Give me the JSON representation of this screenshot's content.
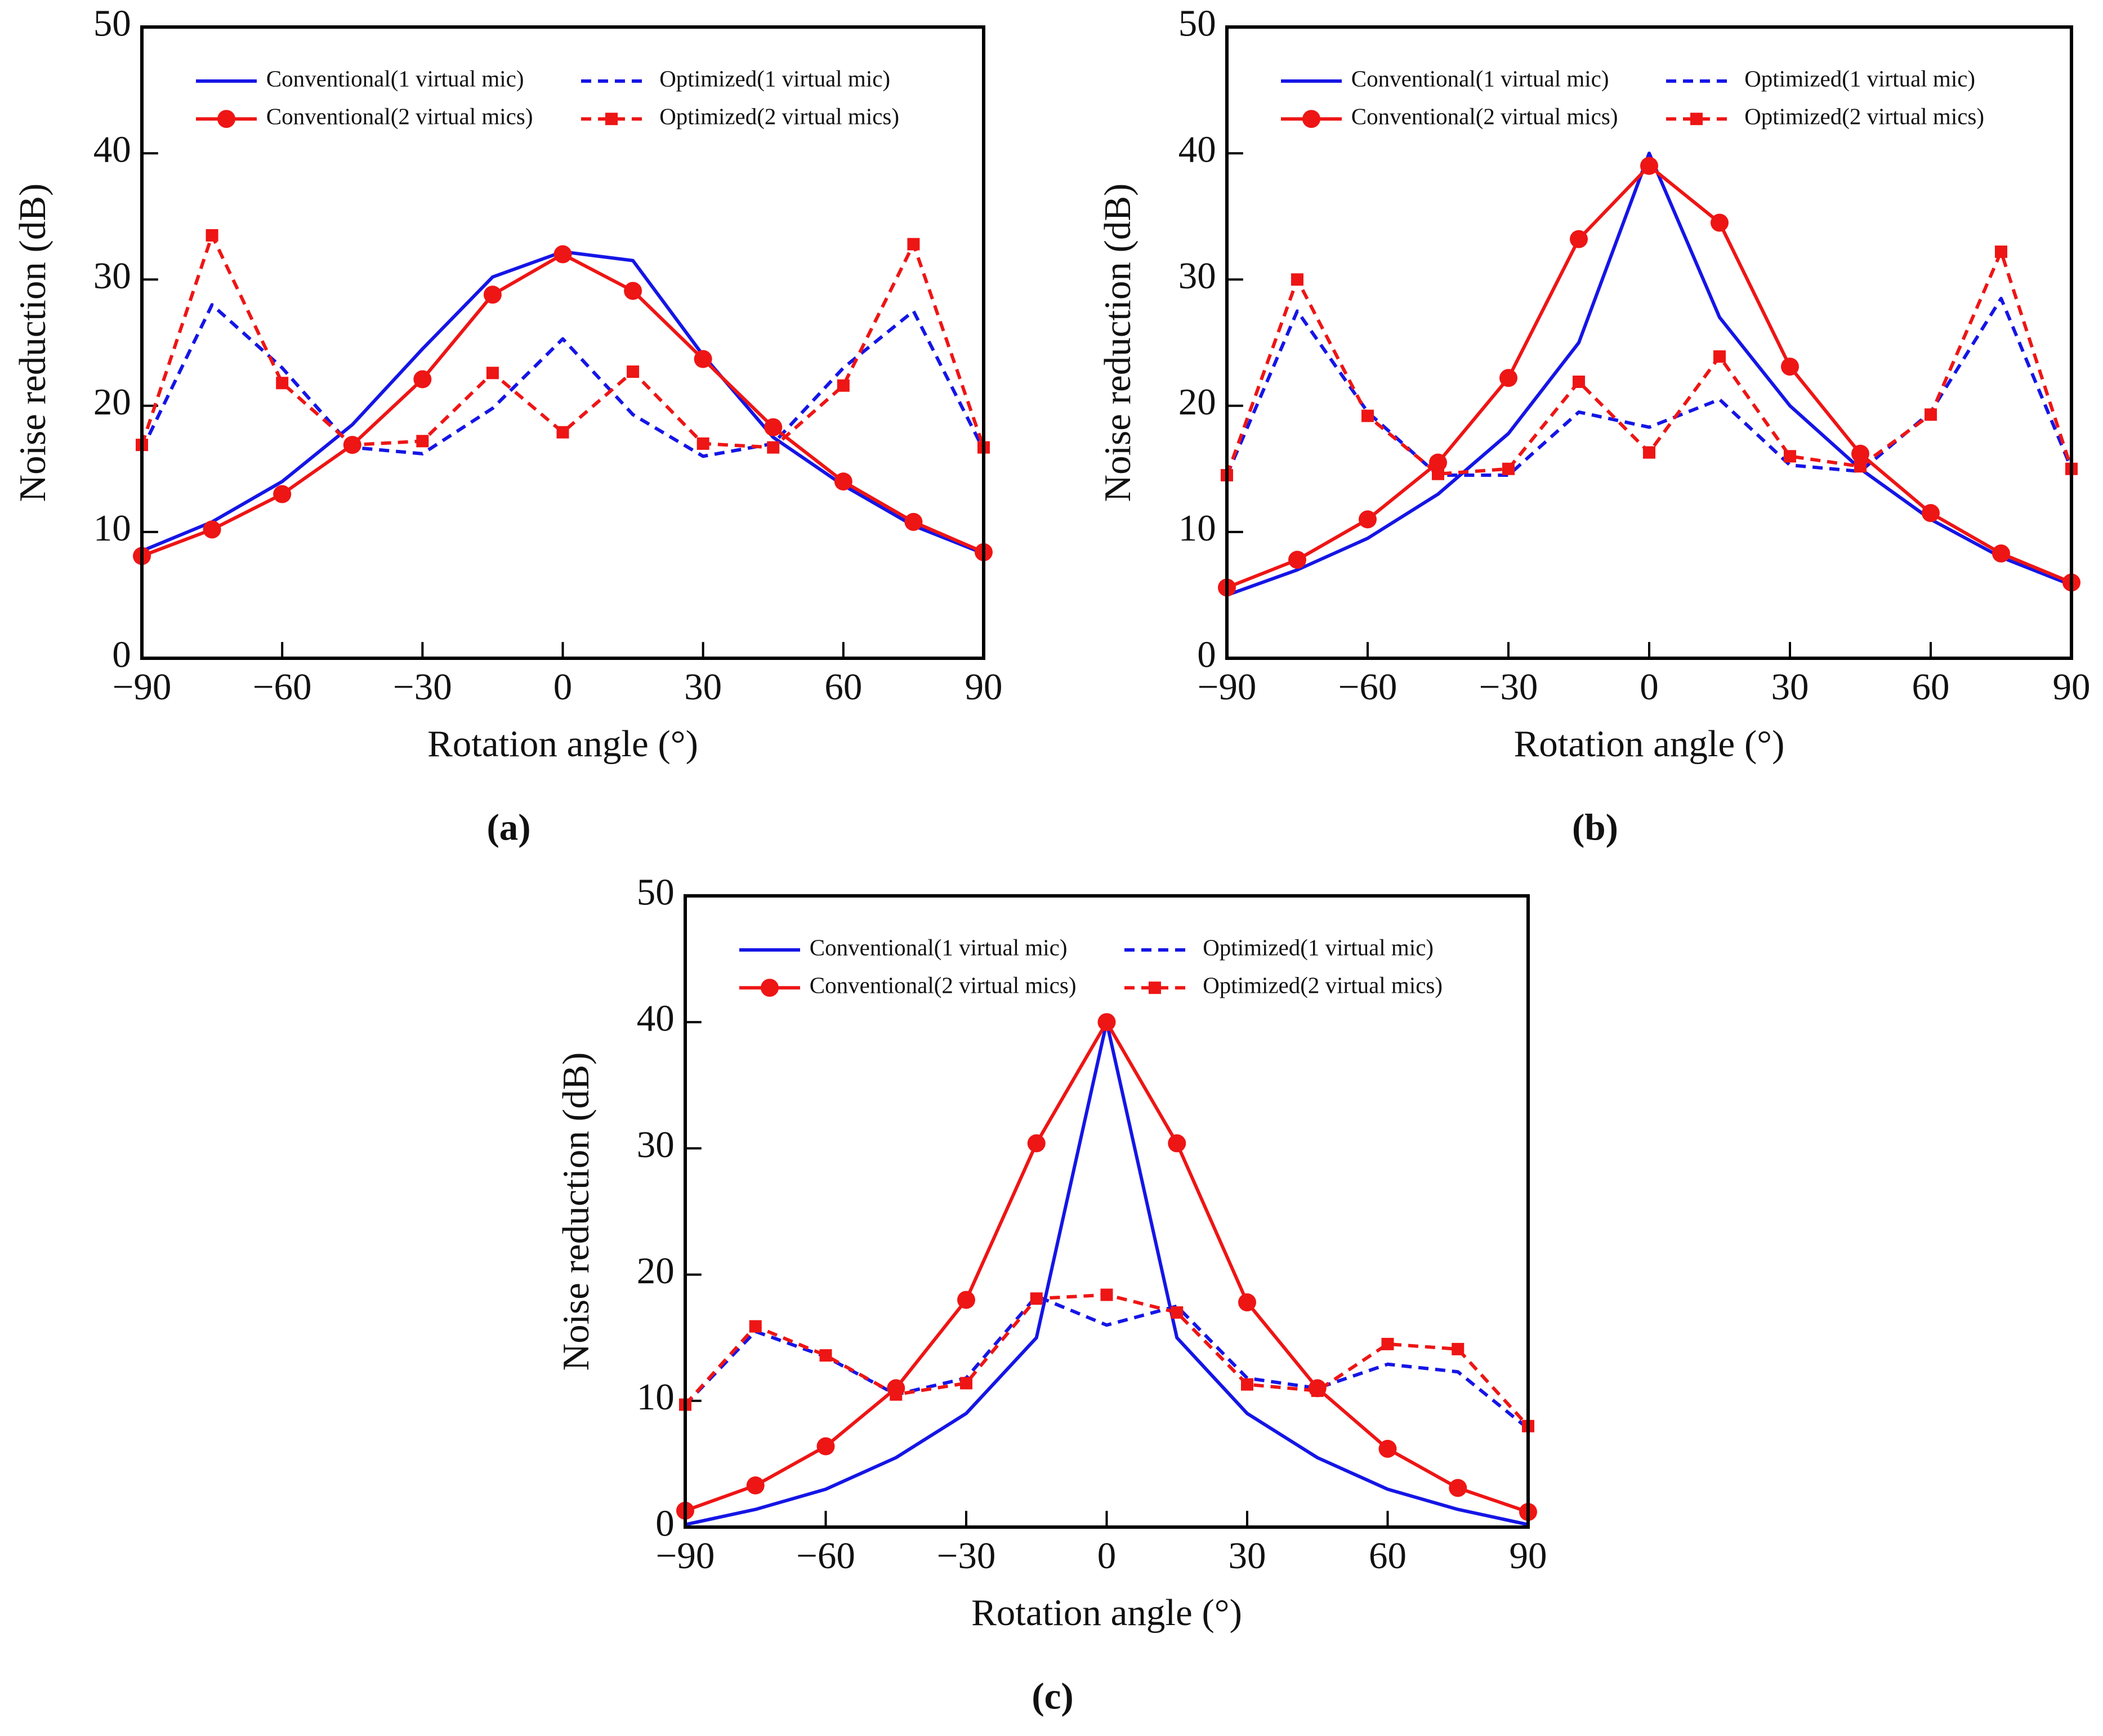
{
  "chart_data": [
    {
      "type": "line",
      "caption": "(a)",
      "x_label": "Rotation angle (°)",
      "y_label": "Noise reduction (dB)",
      "x": [
        -90,
        -75,
        -60,
        -45,
        -30,
        -15,
        0,
        15,
        30,
        45,
        60,
        75,
        90
      ],
      "xlim": [
        -90,
        90
      ],
      "xticks": [
        {
          "value": -90,
          "label": "−90"
        },
        {
          "value": -60,
          "label": "−60"
        },
        {
          "value": -30,
          "label": "−30"
        },
        0,
        30,
        60,
        90
      ],
      "ylim": [
        0,
        50
      ],
      "yticks": [
        0,
        10,
        20,
        30,
        40,
        50
      ],
      "series": [
        {
          "name": "Conventional(1 virtual mic)",
          "color": "#1515e6",
          "line_style": "solid",
          "values": [
            8.5,
            10.8,
            14,
            18.5,
            24.5,
            30.2,
            32.2,
            31.5,
            24,
            17.5,
            13.7,
            10.5,
            8.3
          ]
        },
        {
          "name": "Optimized(1 virtual mic)",
          "color": "#1515e6",
          "line_style": "dashed",
          "values": [
            16.5,
            28,
            23,
            16.7,
            16.2,
            19.8,
            25.3,
            19.3,
            16,
            17,
            23,
            27.5,
            16.5
          ]
        },
        {
          "name": "Conventional(2 virtual mics)",
          "color": "#ee1515",
          "line_style": "solid",
          "marker": "circle",
          "values": [
            8.1,
            10.2,
            13,
            16.9,
            22.1,
            28.8,
            32,
            29.1,
            23.7,
            18.3,
            14,
            10.8,
            8.4
          ]
        },
        {
          "name": "Optimized(2 virtual mics)",
          "color": "#ee1515",
          "line_style": "dashed",
          "marker": "square",
          "values": [
            16.9,
            33.5,
            21.8,
            16.9,
            17.2,
            22.6,
            17.9,
            22.7,
            17,
            16.7,
            21.6,
            32.8,
            16.7
          ]
        }
      ]
    },
    {
      "type": "line",
      "caption": "(b)",
      "x_label": "Rotation angle (°)",
      "y_label": "Noise reduction (dB)",
      "x": [
        -90,
        -75,
        -60,
        -45,
        -30,
        -15,
        0,
        15,
        30,
        45,
        60,
        75,
        90
      ],
      "xlim": [
        -90,
        90
      ],
      "xticks": [
        {
          "value": -90,
          "label": "−90"
        },
        {
          "value": -60,
          "label": "−60"
        },
        {
          "value": -30,
          "label": "−30"
        },
        0,
        30,
        60,
        90
      ],
      "ylim": [
        0,
        50
      ],
      "yticks": [
        0,
        10,
        20,
        30,
        40,
        50
      ],
      "series": [
        {
          "name": "Conventional(1 virtual mic)",
          "color": "#1515e6",
          "line_style": "solid",
          "values": [
            5,
            7,
            9.5,
            13,
            17.8,
            25,
            40,
            27,
            20,
            15,
            11,
            8,
            5.8
          ]
        },
        {
          "name": "Optimized(1 virtual mic)",
          "color": "#1515e6",
          "line_style": "dashed",
          "values": [
            14.5,
            27.5,
            19.5,
            14.5,
            14.5,
            19.5,
            18.3,
            20.5,
            15.3,
            14.8,
            19.5,
            28.5,
            15
          ]
        },
        {
          "name": "Conventional(2 virtual mics)",
          "color": "#ee1515",
          "line_style": "solid",
          "marker": "circle",
          "values": [
            5.6,
            7.8,
            11,
            15.5,
            22.2,
            33.2,
            39,
            34.5,
            23.1,
            16.2,
            11.5,
            8.3,
            6
          ]
        },
        {
          "name": "Optimized(2 virtual mics)",
          "color": "#ee1515",
          "line_style": "dashed",
          "marker": "square",
          "values": [
            14.5,
            30,
            19.2,
            14.6,
            15,
            21.9,
            16.3,
            23.9,
            16,
            15.2,
            19.3,
            32.2,
            15
          ]
        }
      ]
    },
    {
      "type": "line",
      "caption": "(c)",
      "x_label": "Rotation angle (°)",
      "y_label": "Noise reduction (dB)",
      "x": [
        -90,
        -75,
        -60,
        -45,
        -30,
        -15,
        0,
        15,
        30,
        45,
        60,
        75,
        90
      ],
      "xlim": [
        -90,
        90
      ],
      "xticks": [
        {
          "value": -90,
          "label": "−90"
        },
        {
          "value": -60,
          "label": "−60"
        },
        {
          "value": -30,
          "label": "−30"
        },
        0,
        30,
        60,
        90
      ],
      "ylim": [
        0,
        50
      ],
      "yticks": [
        0,
        10,
        20,
        30,
        40,
        50
      ],
      "series": [
        {
          "name": "Conventional(1 virtual mic)",
          "color": "#1515e6",
          "line_style": "solid",
          "values": [
            0.2,
            1.4,
            3,
            5.5,
            9,
            15,
            40,
            15,
            9,
            5.5,
            3,
            1.4,
            0.2
          ]
        },
        {
          "name": "Optimized(1 virtual mic)",
          "color": "#1515e6",
          "line_style": "dashed",
          "values": [
            9.7,
            15.5,
            13.5,
            10.5,
            11.8,
            18.3,
            16,
            17.5,
            11.8,
            11,
            12.9,
            12.3,
            7.8
          ]
        },
        {
          "name": "Conventional(2 virtual mics)",
          "color": "#ee1515",
          "line_style": "solid",
          "marker": "circle",
          "values": [
            1.3,
            3.3,
            6.4,
            11,
            18,
            30.4,
            40,
            30.4,
            17.8,
            11,
            6.2,
            3.1,
            1.2
          ]
        },
        {
          "name": "Optimized(2 virtual mics)",
          "color": "#ee1515",
          "line_style": "dashed",
          "marker": "square",
          "values": [
            9.7,
            15.9,
            13.6,
            10.5,
            11.4,
            18.1,
            18.4,
            17,
            11.3,
            10.8,
            14.5,
            14.1,
            8
          ]
        }
      ]
    }
  ]
}
